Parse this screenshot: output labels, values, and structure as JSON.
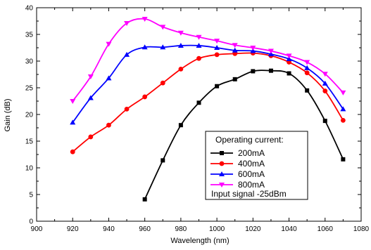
{
  "chart_data": {
    "type": "line",
    "xlabel": "Wavelength (nm)",
    "ylabel": "Gain (dB)",
    "xlim": [
      900,
      1080
    ],
    "ylim": [
      0,
      40
    ],
    "xticks": [
      900,
      920,
      940,
      960,
      980,
      1000,
      1020,
      1040,
      1060,
      1080
    ],
    "yticks": [
      0,
      5,
      10,
      15,
      20,
      25,
      30,
      35,
      40
    ],
    "grid": false,
    "legend_title": "Operating current:",
    "legend_note": "Input signal -25dBm",
    "legend_position": "lower-right",
    "series": [
      {
        "name": "200mA",
        "color": "#000000",
        "marker": "square",
        "points": [
          [
            960,
            4.1
          ],
          [
            970,
            11.4
          ],
          [
            980,
            18.0
          ],
          [
            990,
            22.2
          ],
          [
            1000,
            25.3
          ],
          [
            1010,
            26.6
          ],
          [
            1020,
            28.1
          ],
          [
            1030,
            28.2
          ],
          [
            1040,
            27.7
          ],
          [
            1050,
            24.5
          ],
          [
            1060,
            18.8
          ],
          [
            1070,
            11.6
          ]
        ]
      },
      {
        "name": "400mA",
        "color": "#ff0000",
        "marker": "circle",
        "points": [
          [
            920,
            13.0
          ],
          [
            930,
            15.8
          ],
          [
            940,
            18.0
          ],
          [
            950,
            21.0
          ],
          [
            960,
            23.3
          ],
          [
            970,
            25.9
          ],
          [
            980,
            28.5
          ],
          [
            990,
            30.5
          ],
          [
            1000,
            31.2
          ],
          [
            1010,
            31.4
          ],
          [
            1020,
            31.5
          ],
          [
            1030,
            31.0
          ],
          [
            1040,
            29.8
          ],
          [
            1050,
            27.8
          ],
          [
            1060,
            24.4
          ],
          [
            1070,
            18.9
          ]
        ]
      },
      {
        "name": "600mA",
        "color": "#0000ff",
        "marker": "triangle-up",
        "points": [
          [
            920,
            18.5
          ],
          [
            930,
            23.1
          ],
          [
            940,
            26.8
          ],
          [
            950,
            31.2
          ],
          [
            960,
            32.6
          ],
          [
            970,
            32.6
          ],
          [
            980,
            32.9
          ],
          [
            990,
            32.9
          ],
          [
            1000,
            32.5
          ],
          [
            1010,
            32.0
          ],
          [
            1020,
            31.9
          ],
          [
            1030,
            31.3
          ],
          [
            1040,
            30.4
          ],
          [
            1050,
            28.7
          ],
          [
            1060,
            25.8
          ],
          [
            1070,
            21.0
          ]
        ]
      },
      {
        "name": "800mA",
        "color": "#ff00ff",
        "marker": "triangle-down",
        "points": [
          [
            920,
            22.5
          ],
          [
            930,
            27.1
          ],
          [
            940,
            33.2
          ],
          [
            950,
            37.1
          ],
          [
            960,
            37.9
          ],
          [
            970,
            36.4
          ],
          [
            980,
            35.3
          ],
          [
            990,
            34.5
          ],
          [
            1000,
            33.8
          ],
          [
            1010,
            33.0
          ],
          [
            1020,
            32.5
          ],
          [
            1030,
            31.9
          ],
          [
            1040,
            31.0
          ],
          [
            1050,
            29.8
          ],
          [
            1060,
            27.6
          ],
          [
            1070,
            24.1
          ]
        ]
      }
    ]
  }
}
